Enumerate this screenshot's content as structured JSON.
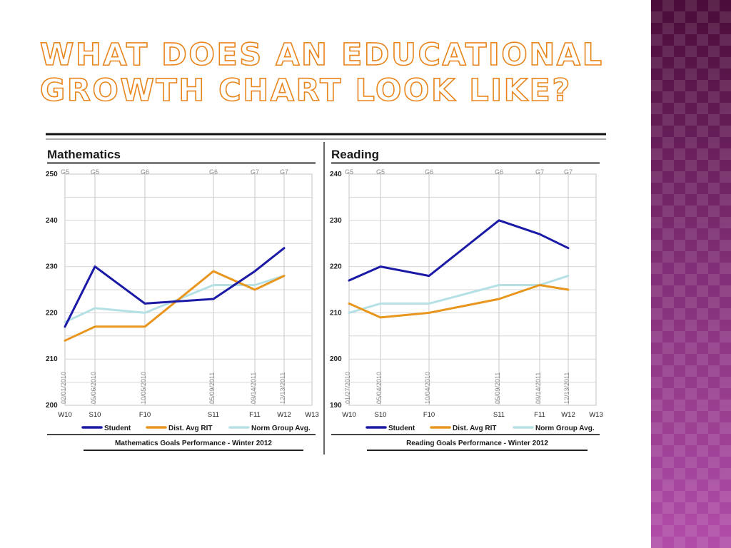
{
  "slide": {
    "title": "What does an educational growth chart look like?"
  },
  "chart_data": [
    {
      "type": "line",
      "title": "Mathematics",
      "caption": "Mathematics Goals Performance - Winter 2012",
      "ylim": [
        200,
        250
      ],
      "yticks": [
        200,
        210,
        220,
        230,
        240,
        250
      ],
      "x_terms": [
        "W10",
        "S10",
        "F10",
        "S11",
        "F11",
        "W12",
        "W13"
      ],
      "test_dates": [
        {
          "term": "W10",
          "date": "02/01/2010",
          "grade": "G5"
        },
        {
          "term": "S10",
          "date": "05/06/2010",
          "grade": "G5"
        },
        {
          "term": "F10",
          "date": "10/05/2010",
          "grade": "G6"
        },
        {
          "term": "S11",
          "date": "05/09/2011",
          "grade": "G6"
        },
        {
          "term": "F11",
          "date": "09/14/2011",
          "grade": "G7"
        },
        {
          "term": "W12",
          "date": "12/13/2011",
          "grade": "G7"
        }
      ],
      "series": [
        {
          "name": "Student",
          "color": "#1a1aa6",
          "values": [
            217,
            230,
            222,
            223,
            229,
            234
          ]
        },
        {
          "name": "Dist. Avg RIT",
          "color": "#e8961e",
          "values": [
            214,
            217,
            217,
            229,
            225,
            228
          ]
        },
        {
          "name": "Norm Group Avg.",
          "color": "#b5e0e4",
          "values": [
            218,
            221,
            220,
            226,
            226,
            228
          ]
        }
      ],
      "grid": true,
      "legend": "bottom"
    },
    {
      "type": "line",
      "title": "Reading",
      "caption": "Reading Goals Performance - Winter 2012",
      "ylim": [
        190,
        240
      ],
      "yticks": [
        190,
        200,
        210,
        220,
        230,
        240
      ],
      "x_terms": [
        "W10",
        "S10",
        "F10",
        "S11",
        "F11",
        "W12",
        "W13"
      ],
      "test_dates": [
        {
          "term": "W10",
          "date": "01/27/2010",
          "grade": "G5"
        },
        {
          "term": "S10",
          "date": "05/04/2010",
          "grade": "G5"
        },
        {
          "term": "F10",
          "date": "10/04/2010",
          "grade": "G6"
        },
        {
          "term": "S11",
          "date": "05/09/2011",
          "grade": "G6"
        },
        {
          "term": "F11",
          "date": "09/14/2011",
          "grade": "G7"
        },
        {
          "term": "W12",
          "date": "12/13/2011",
          "grade": "G7"
        }
      ],
      "series": [
        {
          "name": "Student",
          "color": "#1a1aa6",
          "values": [
            217,
            220,
            218,
            230,
            227,
            224
          ]
        },
        {
          "name": "Dist. Avg RIT",
          "color": "#e8961e",
          "values": [
            212,
            209,
            210,
            213,
            216,
            215
          ]
        },
        {
          "name": "Norm Group Avg.",
          "color": "#b5e0e4",
          "values": [
            210,
            212,
            212,
            216,
            216,
            218
          ]
        }
      ],
      "grid": true,
      "legend": "bottom"
    }
  ]
}
